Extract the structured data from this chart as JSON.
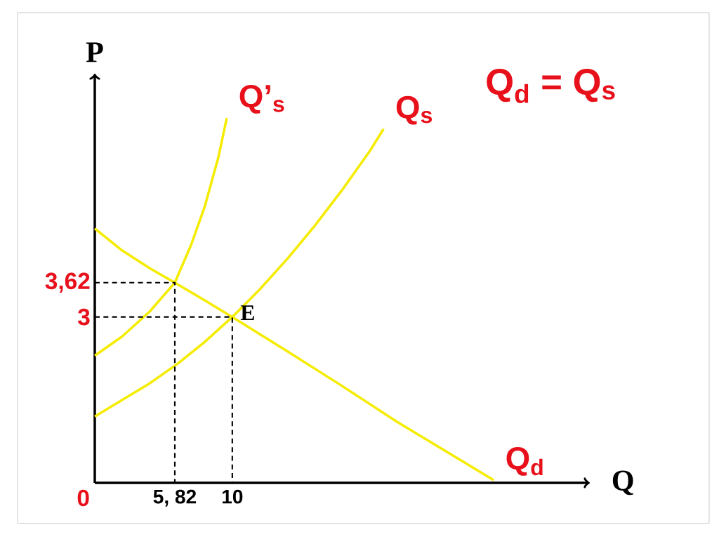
{
  "chart_data": {
    "type": "line",
    "xlabel": "Q",
    "ylabel": "P",
    "xlim": [
      0,
      36
    ],
    "ylim": [
      0,
      7.4
    ],
    "xticks": [
      0,
      {
        "value": 5.82,
        "label": "5, 82"
      },
      10
    ],
    "yticks": [
      3,
      {
        "value": 3.62,
        "label": "3,62"
      }
    ],
    "legend": false,
    "grid": false,
    "series": [
      {
        "name": "Q’$_{s}$",
        "color": "#f5ec00",
        "x": [
          0,
          2,
          4,
          5.82,
          7,
          8,
          9,
          9.6
        ],
        "values": [
          2.3,
          2.65,
          3.1,
          3.62,
          4.3,
          5.0,
          5.9,
          6.6
        ]
      },
      {
        "name": "Q$_{s}$",
        "color": "#f5ec00",
        "x": [
          0,
          2,
          4,
          6,
          8,
          10,
          12,
          14,
          16,
          18,
          20,
          21
        ],
        "values": [
          1.2,
          1.5,
          1.8,
          2.15,
          2.55,
          3,
          3.5,
          4.05,
          4.65,
          5.3,
          6.0,
          6.4
        ]
      },
      {
        "name": "Q$_{d}$",
        "color": "#f5ec00",
        "x": [
          0,
          2,
          4,
          5.82,
          8,
          10,
          14,
          18,
          22,
          26,
          29
        ],
        "values": [
          4.6,
          4.2,
          3.88,
          3.62,
          3.3,
          3,
          2.38,
          1.75,
          1.1,
          0.5,
          0.05
        ]
      },
      {
        "color": "#000000",
        "line_style": "dashed",
        "x": [
          0,
          5.82,
          5.82
        ],
        "values": [
          3.62,
          3.62,
          0
        ]
      },
      {
        "color": "#000000",
        "line_style": "dashed",
        "x": [
          0,
          10,
          10
        ],
        "values": [
          3,
          3,
          0
        ]
      }
    ],
    "annotations": [
      {
        "text": "E",
        "x": 10,
        "y": 3
      },
      "Q$_{d}$ = Q$_{s}$"
    ]
  }
}
